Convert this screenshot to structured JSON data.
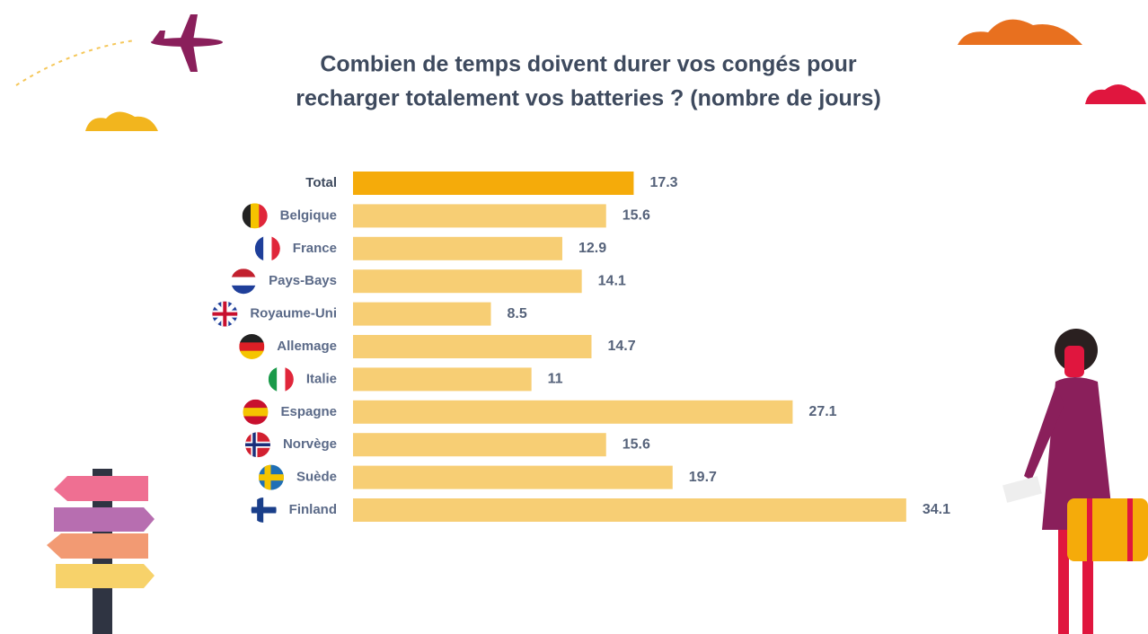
{
  "chart_data": {
    "type": "bar",
    "orientation": "horizontal",
    "title": [
      "Combien de temps doivent durer vos congés pour",
      "recharger totalement vos batteries ? (nombre de jours)"
    ],
    "categories": [
      "Total",
      "Belgique",
      "France",
      "Pays-Bays",
      "Royaume-Uni",
      "Allemage",
      "Italie",
      "Espagne",
      "Norvège",
      "Suède",
      "Finland"
    ],
    "values": [
      17.3,
      15.6,
      12.9,
      14.1,
      8.5,
      14.7,
      11,
      27.1,
      15.6,
      19.7,
      34.1
    ],
    "colors": [
      "#f5ab0a",
      "#f7ce74",
      "#f7ce74",
      "#f7ce74",
      "#f7ce74",
      "#f7ce74",
      "#f7ce74",
      "#f7ce74",
      "#f7ce74",
      "#f7ce74",
      "#f7ce74"
    ]
  }
}
